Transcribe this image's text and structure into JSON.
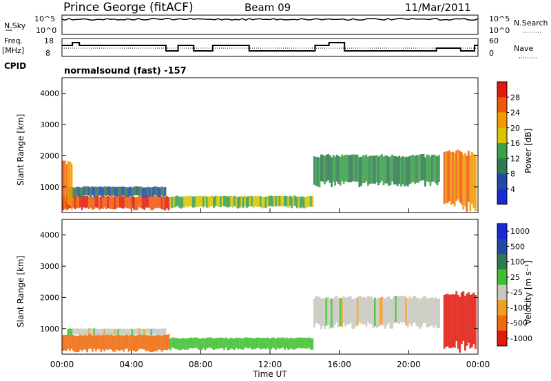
{
  "header": {
    "station": "Prince George (fitACF)",
    "beam": "Beam 09",
    "date": "11/Mar/2011"
  },
  "top_panel": {
    "nsky_label": "N.Sky",
    "nsky_ticks": [
      "10^5",
      "10^0"
    ],
    "nsearch_label": "N.Search",
    "nsearch_ticks": [
      "10^5",
      "10^0"
    ]
  },
  "freq_panel": {
    "freq_label": "Freq.",
    "freq_unit": "[MHz]",
    "freq_ticks": [
      "18",
      "8"
    ],
    "nave_label": "Nave",
    "nave_ticks": [
      "60",
      "0"
    ],
    "cpid_label": "CPID",
    "cpid_text": "normalsound (fast) -157"
  },
  "x_axis": {
    "label": "Time UT",
    "ticks": [
      "00:00",
      "04:00",
      "08:00",
      "12:00",
      "16:00",
      "20:00",
      "00:00"
    ]
  },
  "chart_data": [
    {
      "type": "heatmap",
      "name": "power",
      "ylabel": "Slant Range [km]",
      "yticks": [
        "1000",
        "2000",
        "3000",
        "4000"
      ],
      "ylim": [
        180,
        4500
      ],
      "xlim_hours": [
        0,
        24
      ],
      "colorbar_label": "Power [dB]",
      "colorbar_ticks": [
        "4",
        "8",
        "12",
        "16",
        "20",
        "24",
        "28"
      ],
      "colorbar_colors": [
        "#1a2bd6",
        "#2447a8",
        "#2f7a4f",
        "#3aa04a",
        "#d8c400",
        "#f29a00",
        "#ef5a0a",
        "#e11a0d"
      ],
      "echo_regions": [
        {
          "t": [
            0.0,
            6.2
          ],
          "r": [
            300,
            700
          ],
          "level": 28
        },
        {
          "t": [
            0.3,
            6.0
          ],
          "r": [
            700,
            1000
          ],
          "level": 8
        },
        {
          "t": [
            6.2,
            14.5
          ],
          "r": [
            350,
            700
          ],
          "level": 16
        },
        {
          "t": [
            0.0,
            0.6
          ],
          "r": [
            400,
            1800
          ],
          "level": 24
        },
        {
          "t": [
            14.5,
            21.8
          ],
          "r": [
            1100,
            2000
          ],
          "level": 12
        },
        {
          "t": [
            22.0,
            23.9
          ],
          "r": [
            400,
            2100
          ],
          "level": 24
        }
      ]
    },
    {
      "type": "heatmap",
      "name": "velocity",
      "ylabel": "Slant Range [km]",
      "yticks": [
        "1000",
        "2000",
        "3000",
        "4000"
      ],
      "ylim": [
        180,
        4500
      ],
      "xlim_hours": [
        0,
        24
      ],
      "colorbar_label": "Velocity [m s⁻¹]",
      "colorbar_ticks": [
        "1000",
        "500",
        "100",
        "25",
        "-25",
        "-100",
        "-500",
        "-1000"
      ],
      "colorbar_colors": [
        "#1a2bd6",
        "#2447a8",
        "#2f7a4f",
        "#3fbf2f",
        "#c8c8c0",
        "#f0a020",
        "#ef6a0a",
        "#e11a0d"
      ],
      "echo_regions": [
        {
          "t": [
            0.0,
            6.2
          ],
          "r": [
            300,
            800
          ],
          "level": -300
        },
        {
          "t": [
            0.3,
            6.0
          ],
          "r": [
            800,
            1000
          ],
          "level": 0
        },
        {
          "t": [
            6.2,
            14.5
          ],
          "r": [
            350,
            700
          ],
          "level": 60
        },
        {
          "t": [
            14.5,
            21.8
          ],
          "r": [
            1100,
            2000
          ],
          "level": 0
        },
        {
          "t": [
            22.0,
            23.9
          ],
          "r": [
            400,
            2100
          ],
          "level": -600
        }
      ]
    }
  ]
}
